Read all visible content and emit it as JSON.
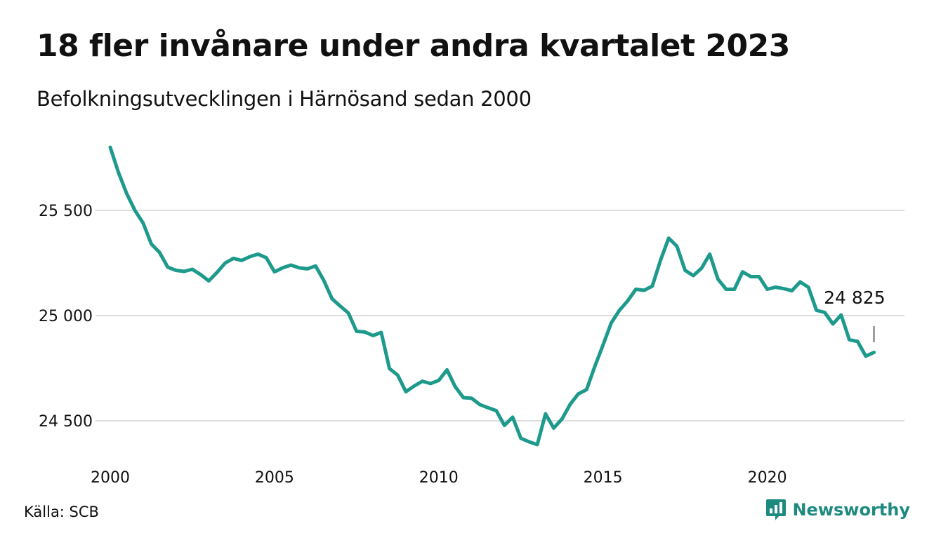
{
  "title": "18 fler invånare under andra kvartalet 2023",
  "subtitle": "Befolkningsutvecklingen i Härnösand sedan 2000",
  "source": "Källa: SCB",
  "brand": {
    "name": "Newsworthy",
    "color": "#1d8a80"
  },
  "chart_data": {
    "type": "line",
    "title": "18 fler invånare under andra kvartalet 2023",
    "subtitle": "Befolkningsutvecklingen i Härnösand sedan 2000",
    "xlabel": "",
    "ylabel": "",
    "x_ticks": [
      "2000",
      "2005",
      "2010",
      "2015",
      "2020"
    ],
    "y_ticks": [
      "24 500",
      "25 000",
      "25 500"
    ],
    "ylim": [
      24380,
      25830
    ],
    "xlim": [
      2000.0,
      2023.75
    ],
    "grid": true,
    "line_color": "#1d9a8c",
    "end_label": "24 825",
    "series": [
      {
        "x_start": 2000.0,
        "x_step": 0.25,
        "values": [
          25800,
          25680,
          25580,
          25500,
          25440,
          25340,
          25300,
          25230,
          25215,
          25210,
          25220,
          25195,
          25165,
          25205,
          25250,
          25272,
          25262,
          25280,
          25292,
          25275,
          25208,
          25227,
          25240,
          25227,
          25222,
          25236,
          25167,
          25080,
          25045,
          25012,
          24925,
          24922,
          24905,
          24920,
          24748,
          24717,
          24638,
          24665,
          24688,
          24677,
          24692,
          24742,
          24662,
          24610,
          24607,
          24577,
          24562,
          24548,
          24478,
          24517,
          24417,
          24400,
          24387,
          24533,
          24465,
          24508,
          24578,
          24628,
          24648,
          24758,
          24860,
          24965,
          25025,
          25070,
          25125,
          25120,
          25140,
          25262,
          25368,
          25330,
          25215,
          25190,
          25225,
          25292,
          25173,
          25125,
          25125,
          25208,
          25185,
          25185,
          25125,
          25135,
          25128,
          25118,
          25160,
          25135,
          25025,
          25015,
          24960,
          25003,
          24885,
          24877,
          24807,
          24825
        ]
      }
    ]
  }
}
